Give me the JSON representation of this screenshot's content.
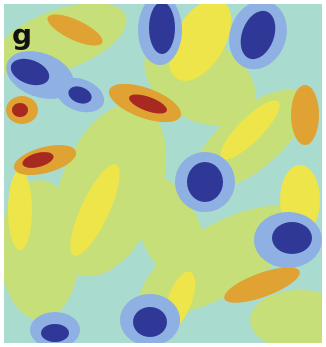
{
  "panel_label": "g"
}
